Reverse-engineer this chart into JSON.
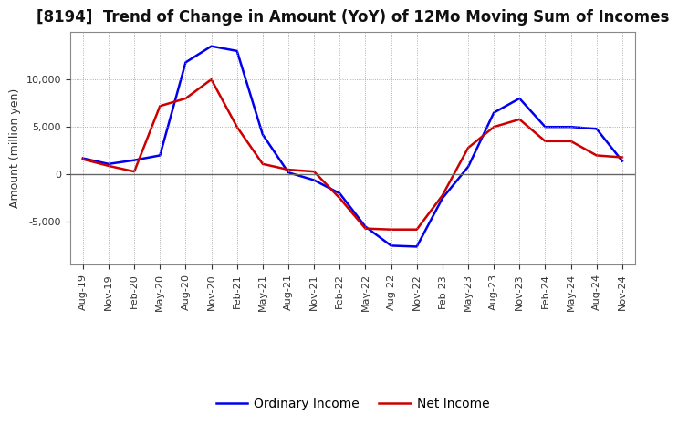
{
  "title": "[8194]  Trend of Change in Amount (YoY) of 12Mo Moving Sum of Incomes",
  "ylabel": "Amount (million yen)",
  "x_labels": [
    "Aug-19",
    "Nov-19",
    "Feb-20",
    "May-20",
    "Aug-20",
    "Nov-20",
    "Feb-21",
    "May-21",
    "Aug-21",
    "Nov-21",
    "Feb-22",
    "May-22",
    "Aug-22",
    "Nov-22",
    "Feb-23",
    "May-23",
    "Aug-23",
    "Nov-23",
    "Feb-24",
    "May-24",
    "Aug-24",
    "Nov-24"
  ],
  "ordinary_income": [
    1700,
    1100,
    1500,
    2000,
    11800,
    13500,
    13000,
    4200,
    200,
    -600,
    -2000,
    -5500,
    -7500,
    -7600,
    -2500,
    800,
    6500,
    8000,
    5000,
    5000,
    4800,
    1400
  ],
  "net_income": [
    1600,
    900,
    300,
    7200,
    8000,
    10000,
    5000,
    1100,
    500,
    300,
    -2500,
    -5700,
    -5800,
    -5800,
    -2200,
    2800,
    5000,
    5800,
    3500,
    3500,
    2000,
    1800
  ],
  "ordinary_income_color": "#0000EE",
  "net_income_color": "#CC0000",
  "background_color": "#FFFFFF",
  "grid_color": "#999999",
  "zero_line_color": "#666666",
  "ylim": [
    -9500,
    15000
  ],
  "yticks": [
    -5000,
    0,
    5000,
    10000
  ],
  "line_width": 1.8,
  "title_fontsize": 12,
  "axis_fontsize": 9,
  "tick_fontsize": 8,
  "legend_fontsize": 10
}
